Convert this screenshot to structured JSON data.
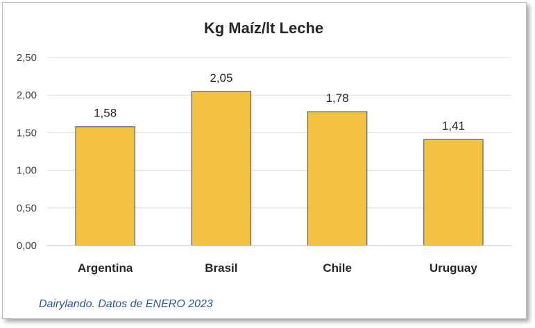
{
  "chart_data": {
    "type": "bar",
    "title": "Kg Maíz/lt Leche",
    "categories": [
      "Argentina",
      "Brasil",
      "Chile",
      "Uruguay"
    ],
    "values": [
      1.58,
      2.05,
      1.78,
      1.41
    ],
    "value_labels": [
      "1,58",
      "2,05",
      "1,78",
      "1,41"
    ],
    "ylim": [
      0,
      2.5
    ],
    "yticks": [
      0,
      0.5,
      1,
      1.5,
      2,
      2.5
    ],
    "ytick_labels": [
      "0,00",
      "0,50",
      "1,00",
      "1,50",
      "2,00",
      "2,50"
    ],
    "xlabel": "",
    "ylabel": "",
    "grid": true,
    "legend": "none",
    "bar_color": "#f4c242",
    "bar_edge_color": "#5a6478",
    "source_note": "Dairylando. Datos de ENERO 2023"
  }
}
